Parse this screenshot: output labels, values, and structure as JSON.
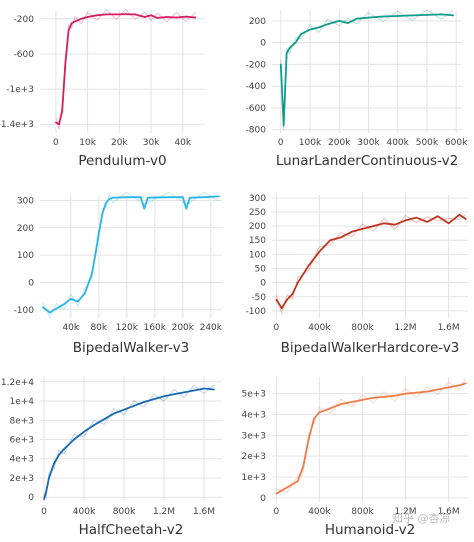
{
  "chart_data": [
    {
      "type": "line",
      "title": "Pendulum-v0",
      "color": "#d81b60",
      "xlim": [
        -5000,
        47000
      ],
      "ylim": [
        -1500,
        -100
      ],
      "xticks": [
        0,
        10000,
        20000,
        30000,
        40000
      ],
      "xtick_labels": [
        "0",
        "10k",
        "20k",
        "30k",
        "40k"
      ],
      "yticks": [
        -200,
        -600,
        -1000,
        -1400
      ],
      "ytick_labels": [
        "-200",
        "-600",
        "-1e+3",
        "-1.4e+3"
      ],
      "x": [
        0,
        1000,
        2000,
        3000,
        4000,
        5000,
        6000,
        8000,
        10000,
        13000,
        16000,
        19000,
        22000,
        25000,
        28000,
        30000,
        32000,
        35000,
        38000,
        41000,
        44000
      ],
      "y": [
        -1380,
        -1400,
        -1250,
        -700,
        -330,
        -250,
        -230,
        -200,
        -180,
        -160,
        -150,
        -150,
        -148,
        -150,
        -180,
        -160,
        -190,
        -180,
        -185,
        -175,
        -185
      ]
    },
    {
      "type": "line",
      "title": "LunarLanderContinuous-v2",
      "color": "#0f9b8e",
      "xlim": [
        -30000,
        620000
      ],
      "ylim": [
        -830,
        300
      ],
      "xticks": [
        0,
        100000,
        200000,
        300000,
        400000,
        500000,
        600000
      ],
      "xtick_labels": [
        "0",
        "100k",
        "200k",
        "300k",
        "400k",
        "500k",
        "600k"
      ],
      "yticks": [
        200,
        0,
        -200,
        -400,
        -600,
        -800
      ],
      "ytick_labels": [
        "200",
        "0",
        "-200",
        "-400",
        "-600",
        "-800"
      ],
      "x": [
        0,
        10000,
        20000,
        30000,
        50000,
        70000,
        100000,
        130000,
        160000,
        200000,
        230000,
        260000,
        300000,
        350000,
        400000,
        450000,
        500000,
        550000,
        590000
      ],
      "y": [
        -200,
        -760,
        -100,
        -50,
        0,
        80,
        120,
        140,
        170,
        200,
        180,
        220,
        230,
        240,
        245,
        250,
        255,
        260,
        250
      ]
    },
    {
      "type": "line",
      "title": "BipedalWalker-v3",
      "color": "#29b6e6",
      "xlim": [
        -4000,
        256000
      ],
      "ylim": [
        -130,
        320
      ],
      "xticks": [
        40000,
        80000,
        120000,
        160000,
        200000,
        240000
      ],
      "xtick_labels": [
        "40k",
        "80k",
        "120k",
        "160k",
        "200k",
        "240k"
      ],
      "yticks": [
        300,
        200,
        100,
        0,
        -100
      ],
      "ytick_labels": [
        "300",
        "200",
        "100",
        "0",
        "-100"
      ],
      "x": [
        0,
        10000,
        20000,
        30000,
        40000,
        50000,
        60000,
        70000,
        75000,
        80000,
        85000,
        90000,
        95000,
        100000,
        120000,
        140000,
        145000,
        150000,
        180000,
        200000,
        205000,
        210000,
        230000,
        252000
      ],
      "y": [
        -90,
        -110,
        -95,
        -80,
        -60,
        -70,
        -40,
        30,
        100,
        180,
        250,
        290,
        305,
        310,
        312,
        312,
        270,
        310,
        312,
        312,
        270,
        310,
        312,
        315
      ]
    },
    {
      "type": "line",
      "title": "BipedalWalkerHardcore-v3",
      "color": "#c0341d",
      "xlim": [
        -40000,
        1780000
      ],
      "ylim": [
        -125,
        310
      ],
      "xticks": [
        0,
        400000,
        800000,
        1200000,
        1600000
      ],
      "xtick_labels": [
        "0",
        "400k",
        "800k",
        "1.2M",
        "1.6M"
      ],
      "yticks": [
        300,
        250,
        200,
        150,
        100,
        50,
        0,
        -50,
        -100
      ],
      "ytick_labels": [
        "300",
        "250",
        "200",
        "150",
        "100",
        "50",
        "0",
        "-50",
        "-100"
      ],
      "x": [
        0,
        50000,
        100000,
        150000,
        200000,
        300000,
        400000,
        500000,
        600000,
        700000,
        800000,
        900000,
        1000000,
        1100000,
        1200000,
        1300000,
        1400000,
        1500000,
        1600000,
        1700000,
        1760000
      ],
      "y": [
        -60,
        -90,
        -60,
        -40,
        0,
        60,
        110,
        150,
        160,
        180,
        190,
        200,
        210,
        205,
        220,
        230,
        215,
        235,
        210,
        240,
        225
      ]
    },
    {
      "type": "line",
      "title": "HalfCheetah-v2",
      "color": "#1668b5",
      "xlim": [
        -40000,
        1780000
      ],
      "ylim": [
        -500,
        12500
      ],
      "xticks": [
        0,
        400000,
        800000,
        1200000,
        1600000
      ],
      "xtick_labels": [
        "0",
        "400k",
        "800k",
        "1.2M",
        "1.6M"
      ],
      "yticks": [
        0,
        2000,
        4000,
        6000,
        8000,
        10000,
        12000
      ],
      "ytick_labels": [
        "0",
        "2e+3",
        "4e+3",
        "6e+3",
        "8e+3",
        "1e+4",
        "1.2e+4"
      ],
      "x": [
        0,
        20000,
        50000,
        100000,
        150000,
        200000,
        300000,
        400000,
        500000,
        600000,
        700000,
        800000,
        900000,
        1000000,
        1100000,
        1200000,
        1300000,
        1400000,
        1500000,
        1600000,
        1700000
      ],
      "y": [
        -200,
        500,
        2000,
        3500,
        4400,
        5000,
        6000,
        6800,
        7500,
        8100,
        8700,
        9100,
        9500,
        9900,
        10200,
        10500,
        10700,
        10900,
        11100,
        11300,
        11200
      ]
    },
    {
      "type": "line",
      "title": "Humanoid-v2",
      "color": "#f07a4a",
      "xlim": [
        -40000,
        1780000
      ],
      "ylim": [
        -200,
        5800
      ],
      "xticks": [
        0,
        400000,
        800000,
        1200000,
        1600000
      ],
      "xtick_labels": [
        "0",
        "400k",
        "800k",
        "1.2M",
        "1.6M"
      ],
      "yticks": [
        0,
        1000,
        2000,
        3000,
        4000,
        5000
      ],
      "ytick_labels": [
        "0",
        "1e+3",
        "2e+3",
        "3e+3",
        "4e+3",
        "5e+3"
      ],
      "x": [
        0,
        100000,
        200000,
        250000,
        300000,
        350000,
        400000,
        500000,
        600000,
        700000,
        800000,
        900000,
        1000000,
        1100000,
        1200000,
        1300000,
        1400000,
        1500000,
        1600000,
        1700000,
        1760000
      ],
      "y": [
        200,
        500,
        800,
        1500,
        2800,
        3800,
        4100,
        4300,
        4500,
        4600,
        4700,
        4800,
        4850,
        4900,
        5000,
        5050,
        5100,
        5200,
        5300,
        5400,
        5500
      ]
    }
  ],
  "watermark": "知乎 @杏凉"
}
